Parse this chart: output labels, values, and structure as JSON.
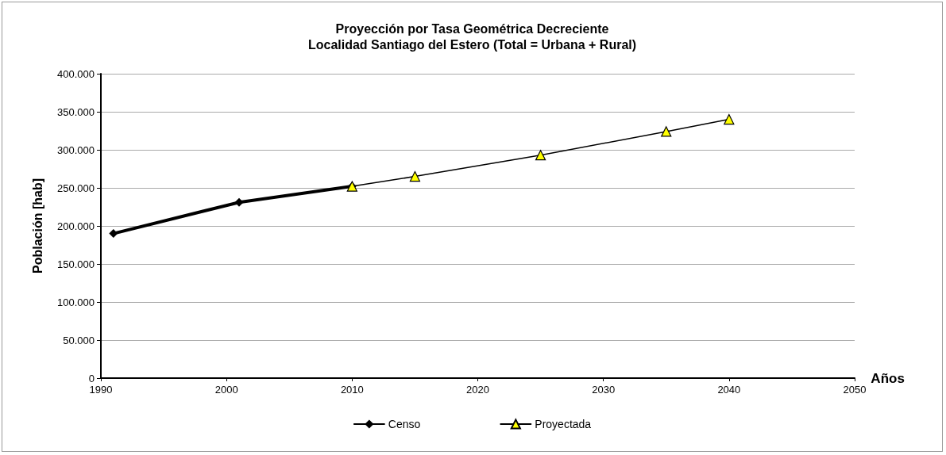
{
  "chart_data": {
    "type": "line",
    "title": "Proyección por Tasa Geométrica Decreciente\nLocalidad Santiago del Estero (Total = Urbana + Rural)",
    "xlabel": "Años",
    "ylabel": "Población [hab]",
    "series": [
      {
        "name": "Censo",
        "color": "#000000",
        "x": [
          1991,
          2001,
          2010
        ],
        "values": [
          190000,
          231000,
          252000
        ],
        "marker": "diamond"
      },
      {
        "name": "Proyectada",
        "color": "#ffff00",
        "x": [
          2010,
          2015,
          2025,
          2035,
          2040
        ],
        "values": [
          252000,
          265000,
          293000,
          324000,
          340000
        ],
        "marker": "triangle"
      }
    ],
    "xlim": [
      1990,
      2050
    ],
    "xticks": [
      1990,
      2000,
      2010,
      2020,
      2030,
      2040,
      2050
    ],
    "ylim": [
      0,
      400000
    ],
    "yticks": [
      0,
      {
        "value": 50000,
        "label": "50.000"
      },
      {
        "value": 100000,
        "label": "100.000"
      },
      {
        "value": 150000,
        "label": "150.000"
      },
      {
        "value": 200000,
        "label": "200.000"
      },
      {
        "value": 250000,
        "label": "250.000"
      },
      {
        "value": 300000,
        "label": "300.000"
      },
      {
        "value": 350000,
        "label": "350.000"
      },
      {
        "value": 400000,
        "label": "400.000"
      }
    ],
    "grid": "y",
    "legend": "bottom",
    "line_style": "solid"
  }
}
